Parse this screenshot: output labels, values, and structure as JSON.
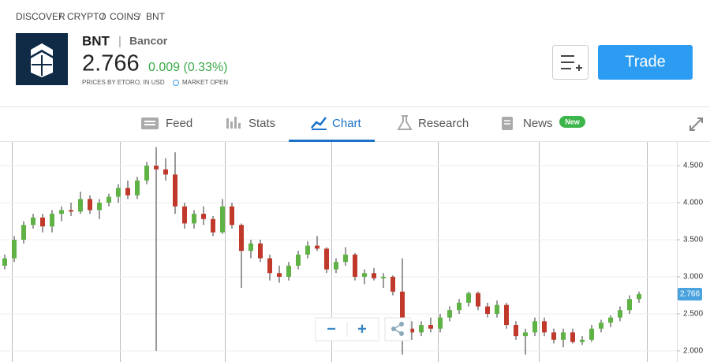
{
  "breadcrumb": [
    "DISCOVER",
    "CRYPTO",
    "COINS",
    "BNT"
  ],
  "breadcrumb_separator": "/",
  "instrument": {
    "symbol": "BNT",
    "separator": "|",
    "name": "Bancor",
    "price": "2.766",
    "change": "0.009 (0.33%)",
    "source_note": "PRICES BY ETORO, IN USD",
    "market_status": "MARKET OPEN"
  },
  "trade_button": "Trade",
  "tabs": [
    {
      "label": "Feed"
    },
    {
      "label": "Stats"
    },
    {
      "label": "Chart"
    },
    {
      "label": "Research"
    },
    {
      "label": "News",
      "badge": "New"
    }
  ],
  "controls": {
    "zoom_out": "−",
    "zoom_in": "+"
  },
  "chart_data": {
    "type": "candlestick",
    "up_color": "#5fb345",
    "down_color": "#c0392b",
    "grid": true,
    "ylim": [
      1.85,
      4.82
    ],
    "yticks": [
      {
        "value": 2.0,
        "label": "2.000"
      },
      {
        "value": 2.5,
        "label": "2.500"
      },
      {
        "value": 3.0,
        "label": "3.000"
      },
      {
        "value": 3.5,
        "label": "3.500"
      },
      {
        "value": 4.0,
        "label": "4.000"
      },
      {
        "value": 4.5,
        "label": "4.500"
      }
    ],
    "ohlc": [
      [
        3.15,
        3.3,
        3.1,
        3.25
      ],
      [
        3.25,
        3.55,
        3.2,
        3.5
      ],
      [
        3.5,
        3.75,
        3.45,
        3.7
      ],
      [
        3.7,
        3.85,
        3.65,
        3.8
      ],
      [
        3.8,
        3.85,
        3.6,
        3.68
      ],
      [
        3.68,
        3.9,
        3.6,
        3.85
      ],
      [
        3.85,
        3.95,
        3.75,
        3.9
      ],
      [
        3.9,
        4.0,
        3.82,
        3.88
      ],
      [
        3.88,
        4.15,
        3.85,
        4.05
      ],
      [
        4.05,
        4.1,
        3.85,
        3.9
      ],
      [
        3.9,
        4.05,
        3.78,
        4.0
      ],
      [
        4.0,
        4.12,
        3.95,
        4.08
      ],
      [
        4.08,
        4.25,
        4.0,
        4.2
      ],
      [
        4.2,
        4.3,
        4.05,
        4.1
      ],
      [
        4.1,
        4.35,
        4.05,
        4.3
      ],
      [
        4.3,
        4.55,
        4.25,
        4.5
      ],
      [
        4.5,
        4.75,
        2.0,
        4.45
      ],
      [
        4.45,
        4.6,
        4.3,
        4.38
      ],
      [
        4.38,
        4.68,
        3.85,
        3.95
      ],
      [
        3.95,
        4.0,
        3.65,
        3.72
      ],
      [
        3.72,
        3.9,
        3.65,
        3.85
      ],
      [
        3.85,
        3.95,
        3.7,
        3.78
      ],
      [
        3.78,
        3.82,
        3.55,
        3.6
      ],
      [
        3.6,
        4.05,
        3.58,
        3.95
      ],
      [
        3.95,
        4.0,
        3.65,
        3.7
      ],
      [
        3.7,
        3.72,
        2.85,
        3.35
      ],
      [
        3.35,
        3.5,
        3.25,
        3.45
      ],
      [
        3.45,
        3.5,
        3.2,
        3.25
      ],
      [
        3.25,
        3.3,
        2.95,
        3.05
      ],
      [
        3.05,
        3.15,
        2.92,
        3.0
      ],
      [
        3.0,
        3.2,
        2.95,
        3.15
      ],
      [
        3.15,
        3.35,
        3.1,
        3.3
      ],
      [
        3.3,
        3.48,
        3.25,
        3.42
      ],
      [
        3.42,
        3.55,
        3.35,
        3.38
      ],
      [
        3.38,
        3.4,
        3.05,
        3.1
      ],
      [
        3.1,
        3.25,
        3.05,
        3.2
      ],
      [
        3.2,
        3.4,
        3.15,
        3.3
      ],
      [
        3.3,
        3.32,
        2.95,
        3.0
      ],
      [
        3.0,
        3.1,
        2.9,
        3.05
      ],
      [
        3.05,
        3.12,
        2.95,
        2.98
      ],
      [
        2.98,
        3.05,
        2.85,
        3.0
      ],
      [
        3.0,
        3.02,
        2.75,
        2.8
      ],
      [
        2.8,
        3.25,
        1.95,
        2.3
      ],
      [
        2.3,
        2.4,
        2.15,
        2.25
      ],
      [
        2.25,
        2.4,
        2.2,
        2.35
      ],
      [
        2.35,
        2.45,
        2.25,
        2.3
      ],
      [
        2.3,
        2.5,
        2.25,
        2.45
      ],
      [
        2.45,
        2.6,
        2.4,
        2.55
      ],
      [
        2.55,
        2.7,
        2.5,
        2.65
      ],
      [
        2.65,
        2.8,
        2.6,
        2.78
      ],
      [
        2.78,
        2.8,
        2.55,
        2.6
      ],
      [
        2.6,
        2.65,
        2.45,
        2.5
      ],
      [
        2.5,
        2.68,
        2.45,
        2.62
      ],
      [
        2.62,
        2.65,
        2.3,
        2.35
      ],
      [
        2.35,
        2.4,
        2.15,
        2.2
      ],
      [
        2.2,
        2.3,
        1.95,
        2.25
      ],
      [
        2.25,
        2.45,
        2.2,
        2.4
      ],
      [
        2.4,
        2.45,
        2.2,
        2.25
      ],
      [
        2.25,
        2.3,
        2.1,
        2.15
      ],
      [
        2.15,
        2.3,
        2.05,
        2.25
      ],
      [
        2.25,
        2.3,
        2.1,
        2.12
      ],
      [
        2.12,
        2.2,
        2.08,
        2.15
      ],
      [
        2.15,
        2.35,
        2.12,
        2.3
      ],
      [
        2.3,
        2.42,
        2.25,
        2.38
      ],
      [
        2.38,
        2.48,
        2.32,
        2.45
      ],
      [
        2.45,
        2.6,
        2.4,
        2.55
      ],
      [
        2.55,
        2.75,
        2.5,
        2.7
      ],
      [
        2.7,
        2.8,
        2.65,
        2.766
      ]
    ]
  }
}
